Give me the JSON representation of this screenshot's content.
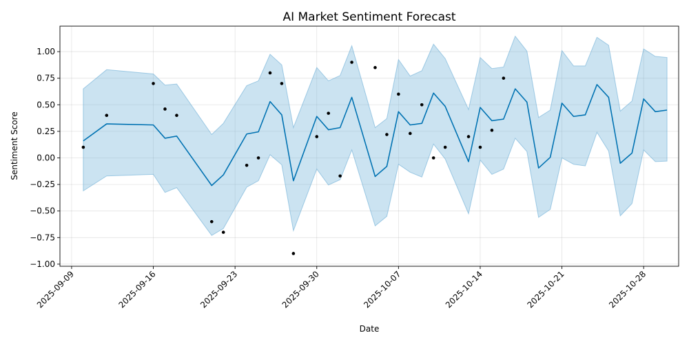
{
  "chart_data": {
    "type": "line",
    "title": "AI Market Sentiment Forecast",
    "xlabel": "Date",
    "ylabel": "Sentiment Score",
    "xlim": [
      "2025-09-08",
      "2025-10-31"
    ],
    "ylim": [
      -1.02,
      1.24
    ],
    "grid": true,
    "colors": {
      "line": "#0072b2",
      "band": "#6baed6",
      "points": "#000000"
    },
    "x_ticks": [
      "2025-09-09",
      "2025-09-16",
      "2025-09-23",
      "2025-09-30",
      "2025-10-07",
      "2025-10-14",
      "2025-10-21",
      "2025-10-28"
    ],
    "y_ticks": [
      "1.00",
      "0.75",
      "0.50",
      "0.25",
      "0.00",
      "−0.25",
      "−0.50",
      "−0.75",
      "−1.00"
    ],
    "y_tick_values": [
      1.0,
      0.75,
      0.5,
      0.25,
      0.0,
      -0.25,
      -0.5,
      -0.75,
      -1.0
    ],
    "series": [
      {
        "type": "line",
        "x": [
          "2025-09-10",
          "2025-09-12",
          "2025-09-16",
          "2025-09-17",
          "2025-09-18",
          "2025-09-21",
          "2025-09-22",
          "2025-09-24",
          "2025-09-25",
          "2025-09-26",
          "2025-09-27",
          "2025-09-28",
          "2025-09-30",
          "2025-10-01",
          "2025-10-02",
          "2025-10-03",
          "2025-10-05",
          "2025-10-06",
          "2025-10-07",
          "2025-10-08",
          "2025-10-09",
          "2025-10-10",
          "2025-10-11",
          "2025-10-13",
          "2025-10-14",
          "2025-10-15",
          "2025-10-16",
          "2025-10-17",
          "2025-10-18",
          "2025-10-19",
          "2025-10-20",
          "2025-10-21",
          "2025-10-22",
          "2025-10-23",
          "2025-10-24",
          "2025-10-25",
          "2025-10-26",
          "2025-10-27",
          "2025-10-28",
          "2025-10-29",
          "2025-10-30"
        ],
        "y": [
          0.16,
          0.32,
          0.31,
          0.185,
          0.205,
          -0.26,
          -0.16,
          0.225,
          0.245,
          0.53,
          0.405,
          -0.215,
          0.39,
          0.265,
          0.285,
          0.57,
          -0.175,
          -0.08,
          0.435,
          0.31,
          0.325,
          0.61,
          0.485,
          -0.035,
          0.475,
          0.35,
          0.365,
          0.65,
          0.525,
          -0.095,
          0.005,
          0.515,
          0.39,
          0.405,
          0.69,
          0.57,
          -0.05,
          0.045,
          0.555,
          0.435,
          0.45
        ]
      },
      {
        "type": "band",
        "x": [
          "2025-09-10",
          "2025-09-12",
          "2025-09-16",
          "2025-09-17",
          "2025-09-18",
          "2025-09-21",
          "2025-09-22",
          "2025-09-24",
          "2025-09-25",
          "2025-09-26",
          "2025-09-27",
          "2025-09-28",
          "2025-09-30",
          "2025-10-01",
          "2025-10-02",
          "2025-10-03",
          "2025-10-05",
          "2025-10-06",
          "2025-10-07",
          "2025-10-08",
          "2025-10-09",
          "2025-10-10",
          "2025-10-11",
          "2025-10-13",
          "2025-10-14",
          "2025-10-15",
          "2025-10-16",
          "2025-10-17",
          "2025-10-18",
          "2025-10-19",
          "2025-10-20",
          "2025-10-21",
          "2025-10-22",
          "2025-10-23",
          "2025-10-24",
          "2025-10-25",
          "2025-10-26",
          "2025-10-27",
          "2025-10-28",
          "2025-10-29",
          "2025-10-30"
        ],
        "lower": [
          -0.31,
          -0.17,
          -0.155,
          -0.325,
          -0.28,
          -0.73,
          -0.665,
          -0.275,
          -0.215,
          0.03,
          -0.065,
          -0.685,
          -0.105,
          -0.255,
          -0.205,
          0.075,
          -0.64,
          -0.55,
          -0.06,
          -0.135,
          -0.18,
          0.13,
          -0.01,
          -0.525,
          -0.02,
          -0.155,
          -0.105,
          0.185,
          0.06,
          -0.56,
          -0.485,
          0.0,
          -0.06,
          -0.075,
          0.24,
          0.065,
          -0.545,
          -0.43,
          0.075,
          -0.035,
          -0.03
        ],
        "upper": [
          0.65,
          0.83,
          0.79,
          0.685,
          0.695,
          0.22,
          0.325,
          0.68,
          0.725,
          0.975,
          0.875,
          0.285,
          0.85,
          0.725,
          0.775,
          1.055,
          0.285,
          0.37,
          0.925,
          0.77,
          0.82,
          1.07,
          0.935,
          0.455,
          0.945,
          0.84,
          0.855,
          1.145,
          1.005,
          0.38,
          0.45,
          1.01,
          0.865,
          0.865,
          1.135,
          1.06,
          0.44,
          0.535,
          1.025,
          0.955,
          0.945
        ]
      },
      {
        "type": "scatter",
        "x": [
          "2025-09-10",
          "2025-09-12",
          "2025-09-16",
          "2025-09-17",
          "2025-09-18",
          "2025-09-21",
          "2025-09-22",
          "2025-09-24",
          "2025-09-25",
          "2025-09-26",
          "2025-09-27",
          "2025-09-28",
          "2025-09-30",
          "2025-10-01",
          "2025-10-02",
          "2025-10-03",
          "2025-10-05",
          "2025-10-06",
          "2025-10-07",
          "2025-10-08",
          "2025-10-09",
          "2025-10-10",
          "2025-10-11",
          "2025-10-13",
          "2025-10-14",
          "2025-10-15",
          "2025-10-16"
        ],
        "y": [
          0.1,
          0.4,
          0.7,
          0.46,
          0.4,
          -0.6,
          -0.7,
          -0.07,
          0.0,
          0.8,
          0.7,
          -0.9,
          0.2,
          0.42,
          -0.17,
          0.9,
          0.85,
          0.22,
          0.6,
          0.23,
          0.5,
          0.0,
          0.1,
          0.2,
          0.1,
          0.26,
          0.75
        ]
      }
    ]
  }
}
